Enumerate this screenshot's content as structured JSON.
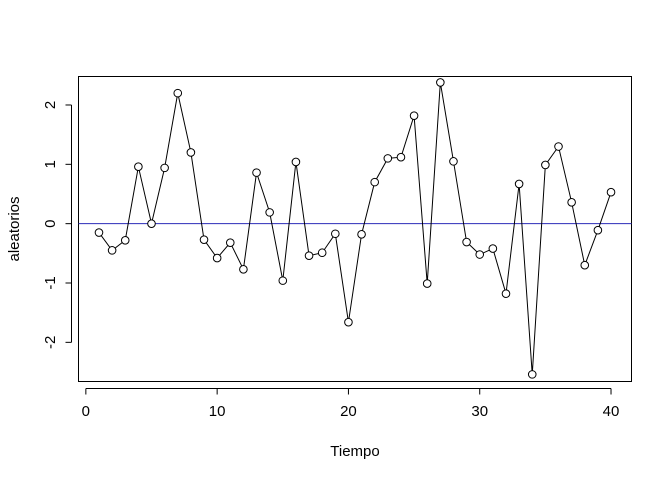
{
  "chart_data": {
    "type": "line",
    "xlabel": "Tiempo",
    "ylabel": "aleatorios",
    "xlim": [
      -0.56,
      41.56
    ],
    "ylim": [
      -2.66,
      2.48
    ],
    "x_ticks": [
      0,
      10,
      20,
      30,
      40
    ],
    "y_ticks": [
      -2,
      -1,
      0,
      1,
      2
    ],
    "x_tick_labels": [
      "0",
      "10",
      "20",
      "30",
      "40"
    ],
    "y_tick_labels": [
      "-2",
      "-1",
      "0",
      "1",
      "2"
    ],
    "grid": false,
    "box": true,
    "line_color": "#000000",
    "reference_line": {
      "y": 0,
      "color": "#2b2bb8"
    },
    "series": [
      {
        "x": [
          1,
          2,
          3,
          4,
          5,
          6,
          7,
          8,
          9,
          10,
          11,
          12,
          13,
          14,
          15,
          16,
          17,
          18,
          19,
          20,
          21,
          22,
          23,
          24,
          25,
          26,
          27,
          28,
          29,
          30,
          31,
          32,
          33,
          34,
          35,
          36,
          37,
          38,
          39,
          40
        ],
        "values": [
          -0.15,
          -0.45,
          -0.28,
          0.96,
          0.0,
          0.94,
          2.2,
          1.2,
          -0.27,
          -0.58,
          -0.32,
          -0.77,
          0.86,
          0.19,
          -0.96,
          1.04,
          -0.54,
          -0.49,
          -0.17,
          -1.66,
          -0.18,
          0.7,
          1.1,
          1.12,
          1.82,
          -1.01,
          2.38,
          1.05,
          -0.31,
          -0.52,
          -0.42,
          -1.18,
          0.67,
          -2.54,
          0.99,
          1.3,
          0.36,
          -0.7,
          -0.11,
          0.53
        ]
      }
    ]
  }
}
